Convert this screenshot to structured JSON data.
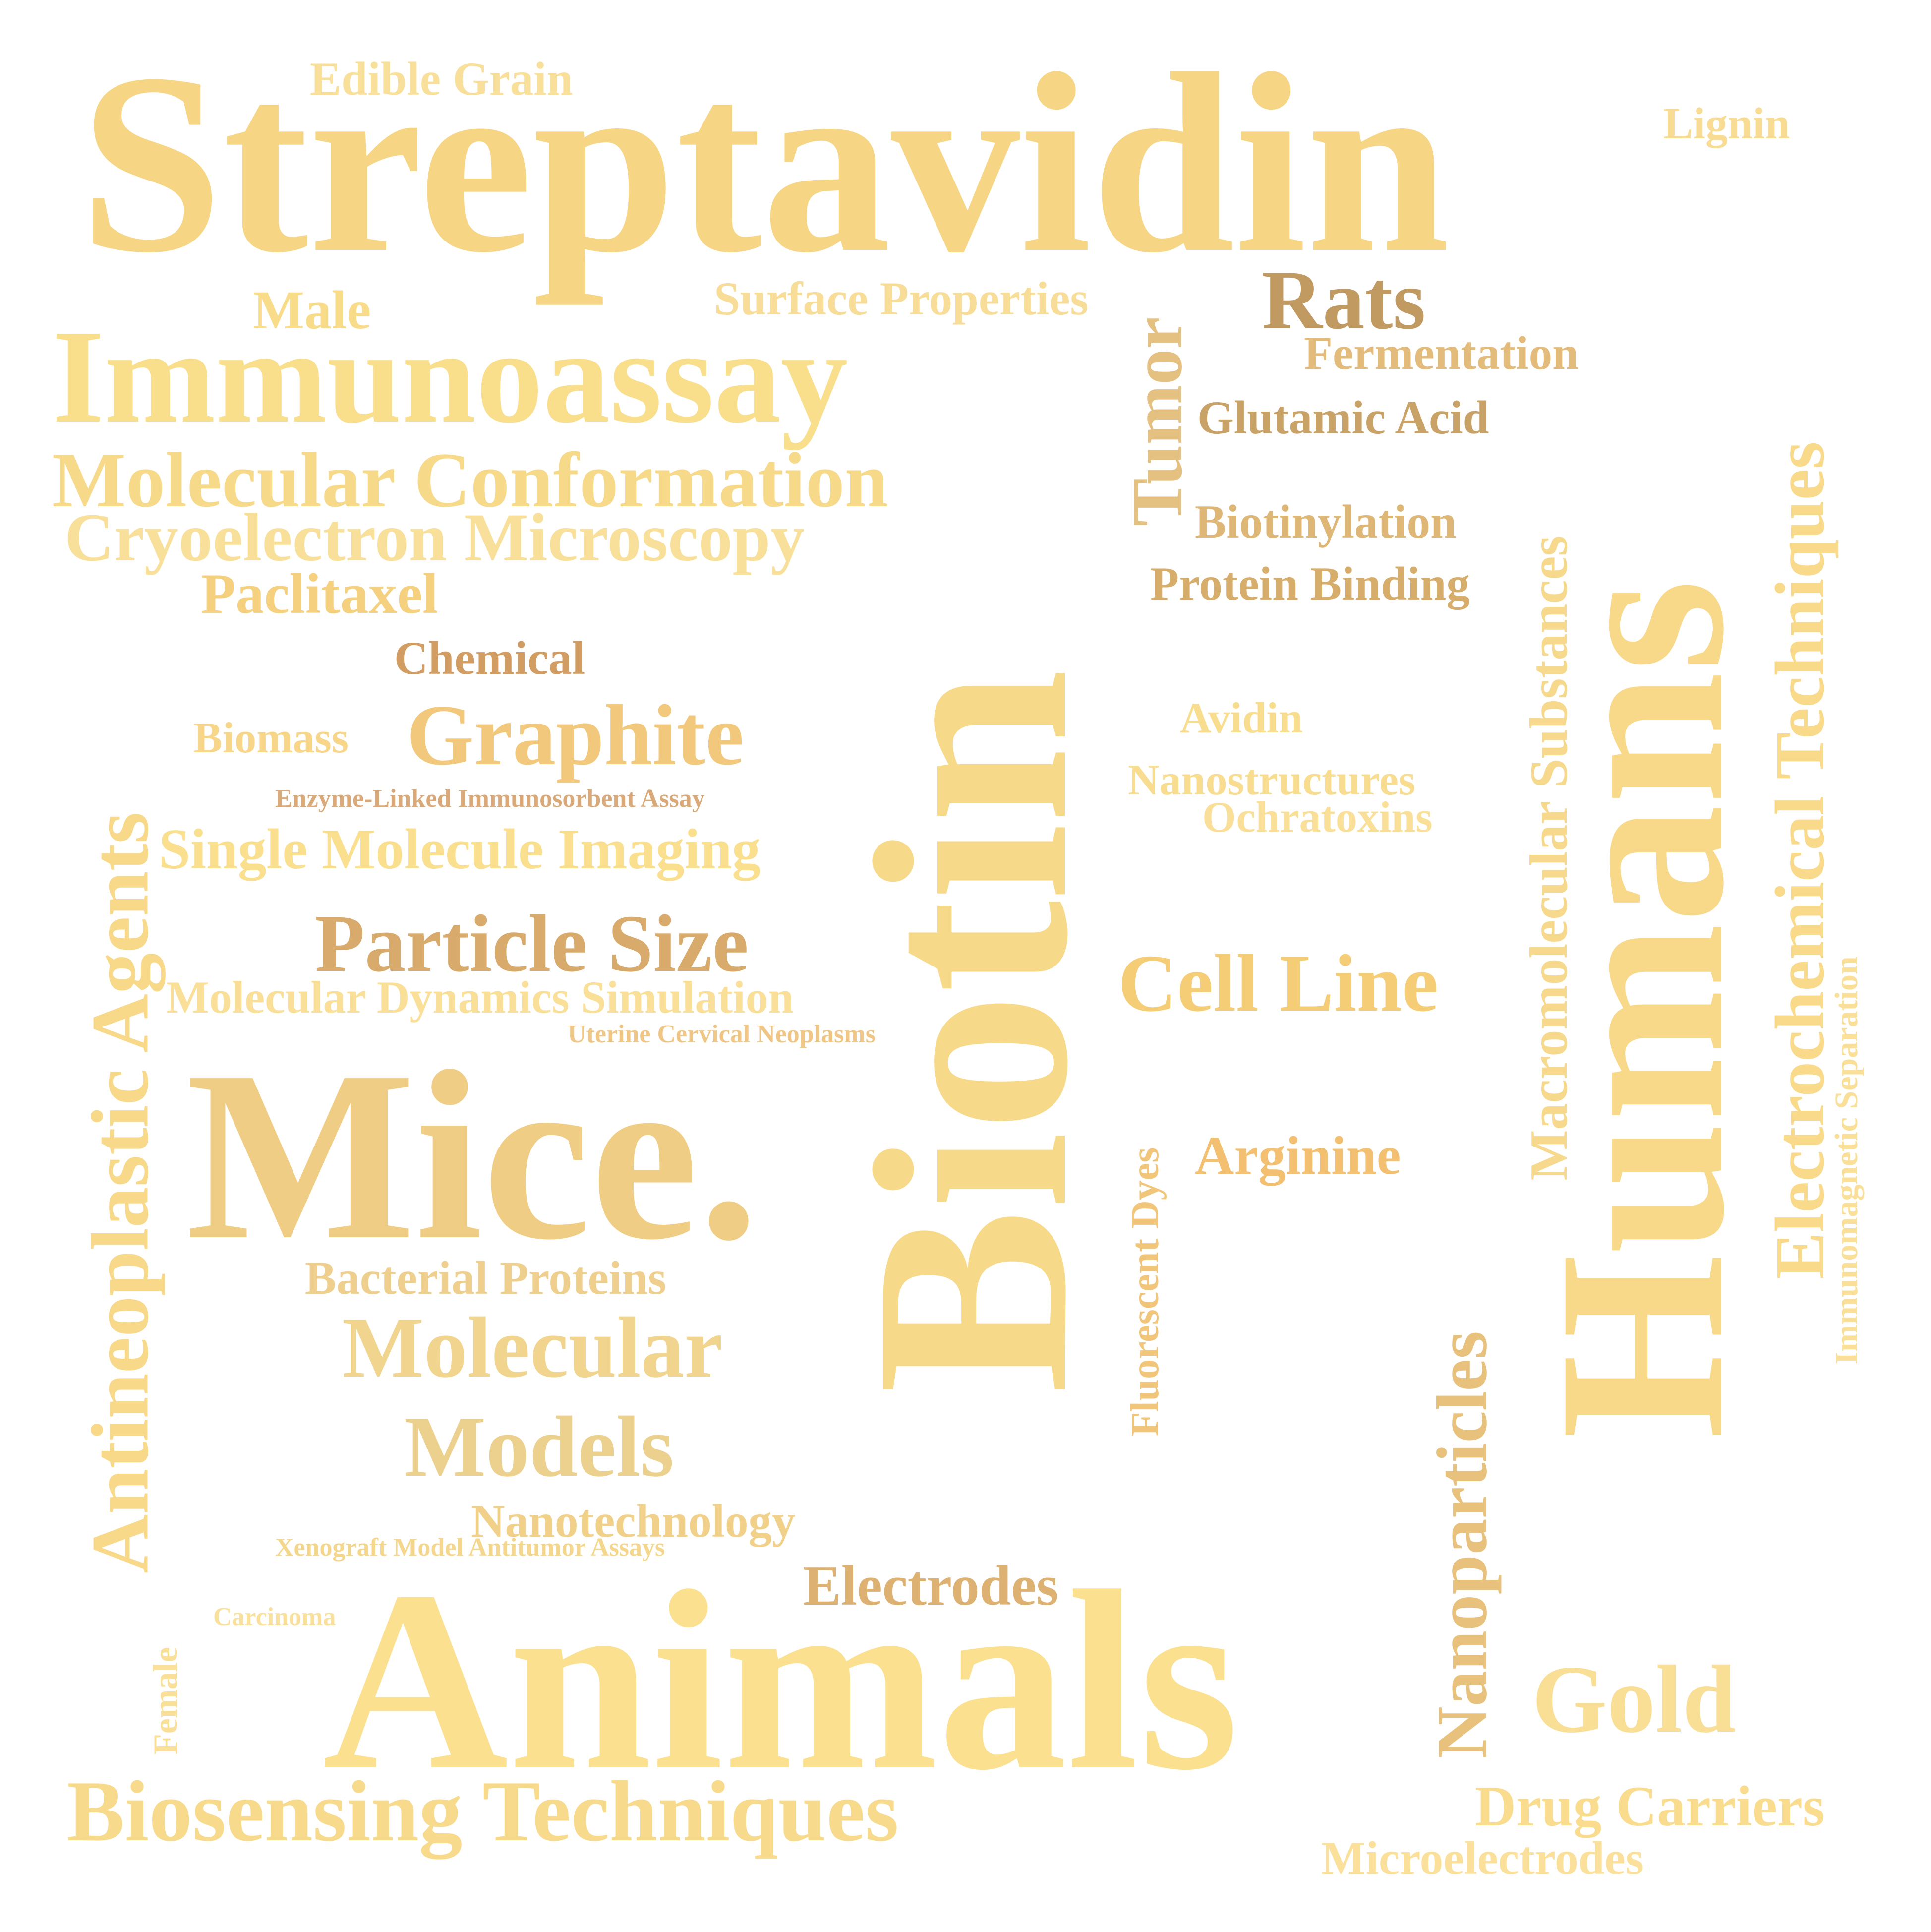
{
  "words": {
    "streptavidin": "Streptavidin",
    "edible_grain": "Edible Grain",
    "lignin": "Lignin",
    "male": "Male",
    "surface_properties": "Surface Properties",
    "tumor": "Tumor",
    "rats": "Rats",
    "fermentation": "Fermentation",
    "immunoassay": "Immunoassay",
    "glutamic_acid": "Glutamic Acid",
    "molecular_conformation": "Molecular Conformation",
    "cryoelectron_microscopy": "Cryoelectron Microscopy",
    "biotinylation": "Biotinylation",
    "paclitaxel": "Paclitaxel",
    "protein_binding": "Protein Binding",
    "chemical": "Chemical",
    "biomass": "Biomass",
    "graphite": "Graphite",
    "avidin": "Avidin",
    "enzyme_linked": "Enzyme-Linked Immunosorbent Assay",
    "nanostructures": "Nanostructures",
    "ochratoxins": "Ochratoxins",
    "single_molecule_imaging": "Single Molecule Imaging",
    "particle_size": "Particle Size",
    "cell_line": "Cell Line",
    "molecular_dynamics": "Molecular Dynamics Simulation",
    "uterine": "Uterine Cervical Neoplasms",
    "mice": "Mice.",
    "arginine": "Arginine",
    "bacterial_proteins": "Bacterial Proteins",
    "molecular": "Molecular",
    "models": "Models",
    "nanotechnology": "Nanotechnology",
    "xenograft": "Xenograft Model Antitumor Assays",
    "electrodes": "Electrodes",
    "carcinoma": "Carcinoma",
    "animals": "Animals",
    "gold": "Gold",
    "biosensing": "Biosensing Techniques",
    "drug_carriers": "Drug Carriers",
    "microelectrodes": "Microelectrodes",
    "biotin": "Biotin",
    "humans": "Humans",
    "electrochemical": "Electrochemical Techniques",
    "macromolecular": "Macromolecular Substances",
    "immunomagnetic": "Immunomagnetic Separation",
    "nanoparticles": "Nanoparticles",
    "fluorescent_dyes": "Fluorescent Dyes",
    "antineoplastic": "Antineoplastic Agents",
    "female": "Female"
  },
  "colors": {
    "light_gold": "#f9dc8a",
    "gold": "#f6d27e",
    "warm": "#f3c878",
    "tan": "#d9ad6f",
    "brown": "#c19a62",
    "orange": "#efba6c"
  }
}
